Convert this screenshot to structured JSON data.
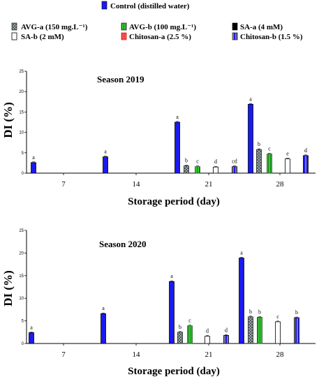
{
  "legend": [
    {
      "label": "Control (distilled water)",
      "color": "#1a1aef",
      "pattern": "solid"
    },
    {
      "label": "AVG-a (150 mg.L⁻¹)",
      "color": "#7f8c8d",
      "pattern": "checker"
    },
    {
      "label": "AVG-b (100 mg.L⁻¹)",
      "color": "#33cc33",
      "pattern": "vstripe"
    },
    {
      "label": "SA-a (4 mM)",
      "color": "#000000",
      "pattern": "solid"
    },
    {
      "label": "SA-b (2 mM)",
      "color": "#ffffff",
      "pattern": "solid"
    },
    {
      "label": "Chitosan-a (2.5 %)",
      "color": "#ff3333",
      "pattern": "dots"
    },
    {
      "label": "Chitosan-b (1.5 %)",
      "color": "#1a1aef",
      "pattern": "stripe-yellow"
    }
  ],
  "chart_data": [
    {
      "type": "bar",
      "title": "Season 2019",
      "xlabel": "Storage period (day)",
      "ylabel": "DI (%)",
      "ylim": [
        0,
        25
      ],
      "yticks": [
        0,
        5,
        10,
        15,
        20,
        25
      ],
      "xticks": [
        "7",
        "14",
        "21",
        "28"
      ],
      "bars": [
        {
          "series": 0,
          "value": 2.6,
          "label": "a"
        },
        {
          "series": 0,
          "value": 4.0,
          "label": "a"
        },
        {
          "series": 0,
          "value": 12.5,
          "label": "a"
        },
        {
          "series": 1,
          "value": 1.8,
          "label": "b"
        },
        {
          "series": 2,
          "value": 1.6,
          "label": "c"
        },
        {
          "series": 4,
          "value": 1.5,
          "label": "d"
        },
        {
          "series": 6,
          "value": 1.6,
          "label": "cd"
        },
        {
          "series": 0,
          "value": 16.9,
          "label": "a"
        },
        {
          "series": 1,
          "value": 5.8,
          "label": "b"
        },
        {
          "series": 2,
          "value": 4.7,
          "label": "c"
        },
        {
          "series": 4,
          "value": 3.5,
          "label": "e"
        },
        {
          "series": 6,
          "value": 4.3,
          "label": "d"
        }
      ]
    },
    {
      "type": "bar",
      "title": "Season 2020",
      "xlabel": "Storage period (day)",
      "ylabel": "DI (%)",
      "ylim": [
        0,
        25
      ],
      "yticks": [
        0,
        5,
        10,
        15,
        20,
        25
      ],
      "xticks": [
        "7",
        "14",
        "21",
        "28"
      ],
      "bars": [
        {
          "series": 0,
          "value": 2.4,
          "label": "a"
        },
        {
          "series": 0,
          "value": 6.6,
          "label": "a"
        },
        {
          "series": 0,
          "value": 13.7,
          "label": "a"
        },
        {
          "series": 1,
          "value": 2.5,
          "label": "b"
        },
        {
          "series": 2,
          "value": 3.9,
          "label": "c"
        },
        {
          "series": 4,
          "value": 1.6,
          "label": "d"
        },
        {
          "series": 6,
          "value": 1.8,
          "label": "d"
        },
        {
          "series": 0,
          "value": 18.9,
          "label": "a"
        },
        {
          "series": 1,
          "value": 5.9,
          "label": "b"
        },
        {
          "series": 2,
          "value": 5.8,
          "label": "b"
        },
        {
          "series": 4,
          "value": 4.8,
          "label": "c"
        },
        {
          "series": 6,
          "value": 5.7,
          "label": "b"
        }
      ]
    }
  ]
}
